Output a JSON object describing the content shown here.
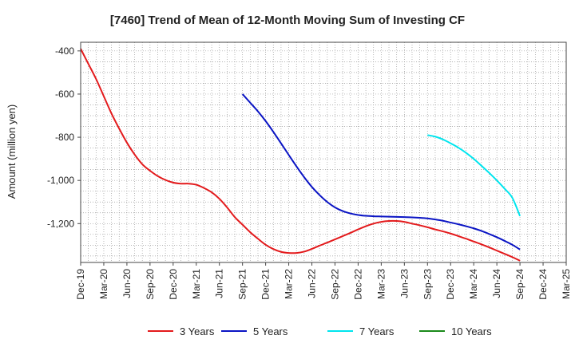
{
  "chart_data": {
    "type": "line",
    "title": "[7460]  Trend of Mean of 12-Month Moving Sum of Investing CF",
    "xlabel": "",
    "ylabel": "Amount (million yen)",
    "ylim": [
      -1380,
      -360
    ],
    "yticks": [
      -400,
      -600,
      -800,
      -1000,
      -1200
    ],
    "ytick_labels": [
      "-400",
      "-600",
      "-800",
      "-1,000",
      "-1,200"
    ],
    "x_tick_labels": [
      "Dec-19",
      "Mar-20",
      "Jun-20",
      "Sep-20",
      "Dec-20",
      "Mar-21",
      "Jun-21",
      "Sep-21",
      "Dec-21",
      "Mar-22",
      "Jun-22",
      "Sep-22",
      "Dec-22",
      "Mar-23",
      "Jun-23",
      "Sep-23",
      "Dec-23",
      "Mar-24",
      "Jun-24",
      "Sep-24",
      "Dec-24",
      "Mar-25"
    ],
    "x_range_months": [
      0,
      63
    ],
    "grid": true,
    "legend_position": "bottom",
    "series": [
      {
        "name": "3 Years",
        "color": "#e31a1c",
        "x_months": [
          0,
          1,
          2,
          3,
          4,
          5,
          6,
          7,
          8,
          9,
          10,
          11,
          12,
          13,
          14,
          15,
          16,
          17,
          18,
          19,
          20,
          21,
          22,
          23,
          24,
          25,
          26,
          27,
          28,
          29,
          30,
          31,
          32,
          33,
          34,
          35,
          36,
          37,
          38,
          39,
          40,
          41,
          42,
          43,
          44,
          45,
          46,
          47,
          48,
          49,
          50,
          51,
          52,
          53,
          54,
          55,
          56,
          57
        ],
        "values": [
          -390,
          -460,
          -530,
          -610,
          -690,
          -760,
          -825,
          -880,
          -925,
          -955,
          -980,
          -998,
          -1010,
          -1015,
          -1015,
          -1020,
          -1035,
          -1055,
          -1085,
          -1125,
          -1170,
          -1205,
          -1240,
          -1270,
          -1298,
          -1318,
          -1331,
          -1336,
          -1336,
          -1330,
          -1317,
          -1302,
          -1288,
          -1273,
          -1258,
          -1243,
          -1227,
          -1212,
          -1200,
          -1192,
          -1188,
          -1188,
          -1192,
          -1200,
          -1208,
          -1217,
          -1227,
          -1236,
          -1246,
          -1258,
          -1270,
          -1283,
          -1296,
          -1310,
          -1325,
          -1340,
          -1355,
          -1372
        ]
      },
      {
        "name": "5 Years",
        "color": "#0a14c4",
        "x_months": [
          21,
          22,
          23,
          24,
          25,
          26,
          27,
          28,
          29,
          30,
          31,
          32,
          33,
          34,
          35,
          36,
          37,
          38,
          39,
          40,
          41,
          42,
          43,
          44,
          45,
          46,
          47,
          48,
          49,
          50,
          51,
          52,
          53,
          54,
          55,
          56,
          57
        ],
        "values": [
          -600,
          -640,
          -680,
          -725,
          -775,
          -828,
          -882,
          -935,
          -985,
          -1030,
          -1068,
          -1100,
          -1125,
          -1142,
          -1153,
          -1160,
          -1164,
          -1166,
          -1167,
          -1168,
          -1169,
          -1170,
          -1171,
          -1173,
          -1176,
          -1181,
          -1187,
          -1195,
          -1203,
          -1212,
          -1222,
          -1234,
          -1248,
          -1263,
          -1280,
          -1298,
          -1320
        ]
      },
      {
        "name": "7 Years",
        "color": "#00e5ee",
        "x_months": [
          45,
          46,
          47,
          48,
          49,
          50,
          51,
          52,
          53,
          54,
          55,
          56,
          57
        ],
        "values": [
          -790,
          -797,
          -810,
          -828,
          -848,
          -872,
          -900,
          -932,
          -965,
          -1000,
          -1038,
          -1080,
          -1165
        ]
      },
      {
        "name": "10 Years",
        "color": "#1a8a1a",
        "x_months": [],
        "values": []
      }
    ]
  }
}
